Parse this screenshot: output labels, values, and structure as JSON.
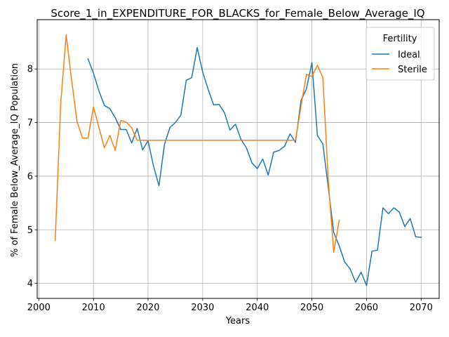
{
  "chart_data": {
    "type": "line",
    "title": "Score_1_in_EXPENDITURE_FOR_BLACKS_for_Female_Below_Average_IQ",
    "xlabel": "Years",
    "ylabel": "% of Female Below_Average_IQ Population",
    "xlim": [
      1999.7,
      2073.3
    ],
    "ylim": [
      3.72,
      8.92
    ],
    "xticks": [
      2000,
      2010,
      2020,
      2030,
      2040,
      2050,
      2060,
      2070
    ],
    "yticks": [
      4,
      5,
      6,
      7,
      8
    ],
    "grid": true,
    "legend": {
      "title": "Fertility",
      "placement": "upper right"
    },
    "series": [
      {
        "name": "Ideal",
        "color": "#1f77b4",
        "x": [
          2009,
          2010,
          2011,
          2012,
          2013,
          2014,
          2015,
          2016,
          2017,
          2018,
          2019,
          2020,
          2021,
          2022,
          2023,
          2024,
          2025,
          2026,
          2027,
          2028,
          2029,
          2030,
          2031,
          2032,
          2033,
          2034,
          2035,
          2036,
          2037,
          2038,
          2039,
          2040,
          2041,
          2042,
          2043,
          2044,
          2045,
          2046,
          2047,
          2048,
          2049,
          2050,
          2051,
          2052,
          2053,
          2054,
          2055,
          2056,
          2057,
          2058,
          2059,
          2060,
          2061,
          2062,
          2063,
          2064,
          2065,
          2066,
          2067,
          2068,
          2069,
          2070
        ],
        "values": [
          8.19,
          7.92,
          7.59,
          7.32,
          7.26,
          7.09,
          6.87,
          6.87,
          6.62,
          6.89,
          6.49,
          6.66,
          6.19,
          5.82,
          6.59,
          6.91,
          7.0,
          7.14,
          7.79,
          7.84,
          8.4,
          7.94,
          7.62,
          7.33,
          7.34,
          7.18,
          6.86,
          6.97,
          6.69,
          6.53,
          6.25,
          6.14,
          6.32,
          6.02,
          6.45,
          6.48,
          6.56,
          6.79,
          6.63,
          7.41,
          7.63,
          8.12,
          6.76,
          6.6,
          5.78,
          4.95,
          4.7,
          4.4,
          4.27,
          4.02,
          4.21,
          3.96,
          4.6,
          4.62,
          5.41,
          5.3,
          5.41,
          5.33,
          5.06,
          5.21,
          4.87,
          4.86
        ]
      },
      {
        "name": "Sterile",
        "color": "#ff7f0e",
        "x": [
          2003,
          2004,
          2005,
          2006,
          2007,
          2008,
          2009,
          2010,
          2011,
          2012,
          2013,
          2014,
          2015,
          2016,
          2017,
          2018,
          2019,
          2020,
          2025,
          2030,
          2035,
          2040,
          2045,
          2047,
          2048,
          2049,
          2050,
          2051,
          2052,
          2053,
          2054,
          2055
        ],
        "values": [
          4.8,
          7.35,
          8.64,
          7.8,
          7.02,
          6.71,
          6.71,
          7.29,
          6.91,
          6.53,
          6.76,
          6.48,
          7.04,
          7.01,
          6.9,
          6.67,
          6.67,
          6.67,
          6.67,
          6.67,
          6.67,
          6.67,
          6.67,
          6.67,
          7.3,
          7.9,
          7.86,
          8.07,
          7.84,
          5.9,
          4.58,
          5.18
        ]
      }
    ]
  }
}
